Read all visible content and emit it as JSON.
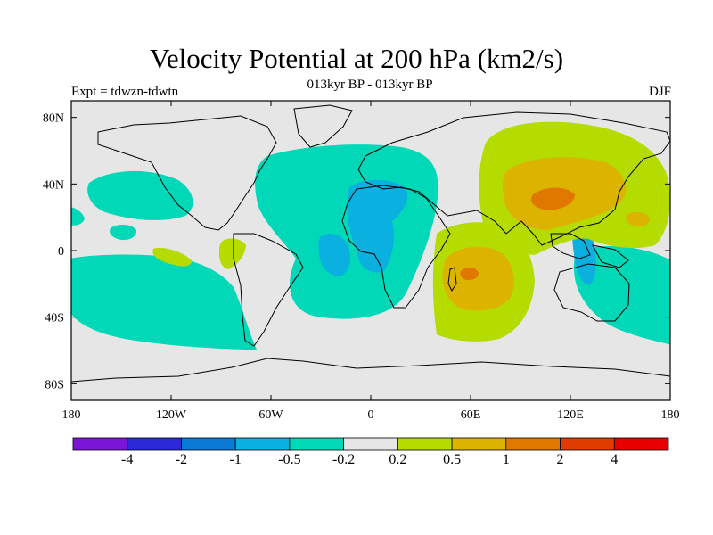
{
  "title": "Velocity Potential at 200 hPa (km2/s)",
  "subtitle": "013kyr BP - 013kyr BP",
  "experiment_label": "Expt = tdwzn-tdwtn",
  "season_label": "DJF",
  "lat_ticks": [
    "80N",
    "40N",
    "0",
    "40S",
    "80S"
  ],
  "lon_ticks": [
    "180",
    "120W",
    "60W",
    "0",
    "60E",
    "120E",
    "180"
  ],
  "colorbar": {
    "colors": [
      "#7a17d6",
      "#2a2ad8",
      "#0a7ad6",
      "#0ab0e0",
      "#00d8b8",
      "#e6e6e6",
      "#b4dc00",
      "#dcb400",
      "#e07800",
      "#e03c00",
      "#e80000"
    ],
    "labels": [
      "-4",
      "-2",
      "-1",
      "-0.5",
      "-0.2",
      "0.2",
      "0.5",
      "1",
      "2",
      "4"
    ]
  },
  "map": {
    "background_color": "#e6e6e6",
    "lon_range": [
      -180,
      180
    ],
    "lat_range": [
      -90,
      90
    ]
  }
}
